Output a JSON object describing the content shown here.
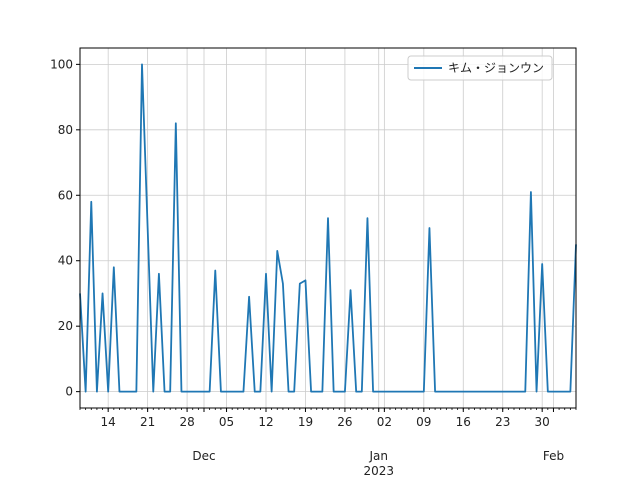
{
  "chart_data": {
    "type": "line",
    "title": "",
    "xlabel": "",
    "ylabel": "",
    "ylim": [
      -5,
      105
    ],
    "xlim": [
      "2022-11-09",
      "2023-02-05"
    ],
    "grid": true,
    "legend_position": "top-right",
    "colors": {
      "series": "#1f77b4",
      "grid": "#cccccc",
      "axis": "#000000"
    },
    "series": [
      {
        "name": "キム・ジョンウン",
        "points": [
          [
            "2022-11-09",
            30
          ],
          [
            "2022-11-10",
            0
          ],
          [
            "2022-11-11",
            58
          ],
          [
            "2022-11-12",
            0
          ],
          [
            "2022-11-13",
            30
          ],
          [
            "2022-11-14",
            0
          ],
          [
            "2022-11-15",
            38
          ],
          [
            "2022-11-16",
            0
          ],
          [
            "2022-11-17",
            0
          ],
          [
            "2022-11-18",
            0
          ],
          [
            "2022-11-19",
            0
          ],
          [
            "2022-11-20",
            100
          ],
          [
            "2022-11-21",
            50
          ],
          [
            "2022-11-22",
            0
          ],
          [
            "2022-11-23",
            36
          ],
          [
            "2022-11-24",
            0
          ],
          [
            "2022-11-25",
            0
          ],
          [
            "2022-11-26",
            82
          ],
          [
            "2022-11-27",
            0
          ],
          [
            "2022-11-28",
            0
          ],
          [
            "2022-11-29",
            0
          ],
          [
            "2022-11-30",
            0
          ],
          [
            "2022-12-01",
            0
          ],
          [
            "2022-12-02",
            0
          ],
          [
            "2022-12-03",
            37
          ],
          [
            "2022-12-04",
            0
          ],
          [
            "2022-12-05",
            0
          ],
          [
            "2022-12-06",
            0
          ],
          [
            "2022-12-07",
            0
          ],
          [
            "2022-12-08",
            0
          ],
          [
            "2022-12-09",
            29
          ],
          [
            "2022-12-10",
            0
          ],
          [
            "2022-12-11",
            0
          ],
          [
            "2022-12-12",
            36
          ],
          [
            "2022-12-13",
            0
          ],
          [
            "2022-12-14",
            43
          ],
          [
            "2022-12-15",
            33
          ],
          [
            "2022-12-16",
            0
          ],
          [
            "2022-12-17",
            0
          ],
          [
            "2022-12-18",
            33
          ],
          [
            "2022-12-19",
            34
          ],
          [
            "2022-12-20",
            0
          ],
          [
            "2022-12-21",
            0
          ],
          [
            "2022-12-22",
            0
          ],
          [
            "2022-12-23",
            53
          ],
          [
            "2022-12-24",
            0
          ],
          [
            "2022-12-25",
            0
          ],
          [
            "2022-12-26",
            0
          ],
          [
            "2022-12-27",
            31
          ],
          [
            "2022-12-28",
            0
          ],
          [
            "2022-12-29",
            0
          ],
          [
            "2022-12-30",
            53
          ],
          [
            "2022-12-31",
            0
          ],
          [
            "2023-01-01",
            0
          ],
          [
            "2023-01-08",
            0
          ],
          [
            "2023-01-09",
            0
          ],
          [
            "2023-01-10",
            50
          ],
          [
            "2023-01-11",
            0
          ],
          [
            "2023-01-26",
            0
          ],
          [
            "2023-01-27",
            0
          ],
          [
            "2023-01-28",
            61
          ],
          [
            "2023-01-29",
            0
          ],
          [
            "2023-01-30",
            39
          ],
          [
            "2023-01-31",
            0
          ],
          [
            "2023-02-04",
            0
          ],
          [
            "2023-02-05",
            45
          ]
        ]
      }
    ],
    "x_major_ticks": [
      {
        "date": "2022-12-01",
        "label": "Dec"
      },
      {
        "date": "2023-01-01",
        "label": "Jan\n2023"
      },
      {
        "date": "2023-02-01",
        "label": "Feb"
      }
    ],
    "x_minor_ticks": [
      {
        "date": "2022-11-14",
        "label": "14"
      },
      {
        "date": "2022-11-21",
        "label": "21"
      },
      {
        "date": "2022-11-28",
        "label": "28"
      },
      {
        "date": "2022-12-05",
        "label": "05"
      },
      {
        "date": "2022-12-12",
        "label": "12"
      },
      {
        "date": "2022-12-19",
        "label": "19"
      },
      {
        "date": "2022-12-26",
        "label": "26"
      },
      {
        "date": "2023-01-02",
        "label": "02"
      },
      {
        "date": "2023-01-09",
        "label": "09"
      },
      {
        "date": "2023-01-16",
        "label": "16"
      },
      {
        "date": "2023-01-23",
        "label": "23"
      },
      {
        "date": "2023-01-30",
        "label": "30"
      }
    ],
    "y_ticks": [
      0,
      20,
      40,
      60,
      80,
      100
    ]
  }
}
